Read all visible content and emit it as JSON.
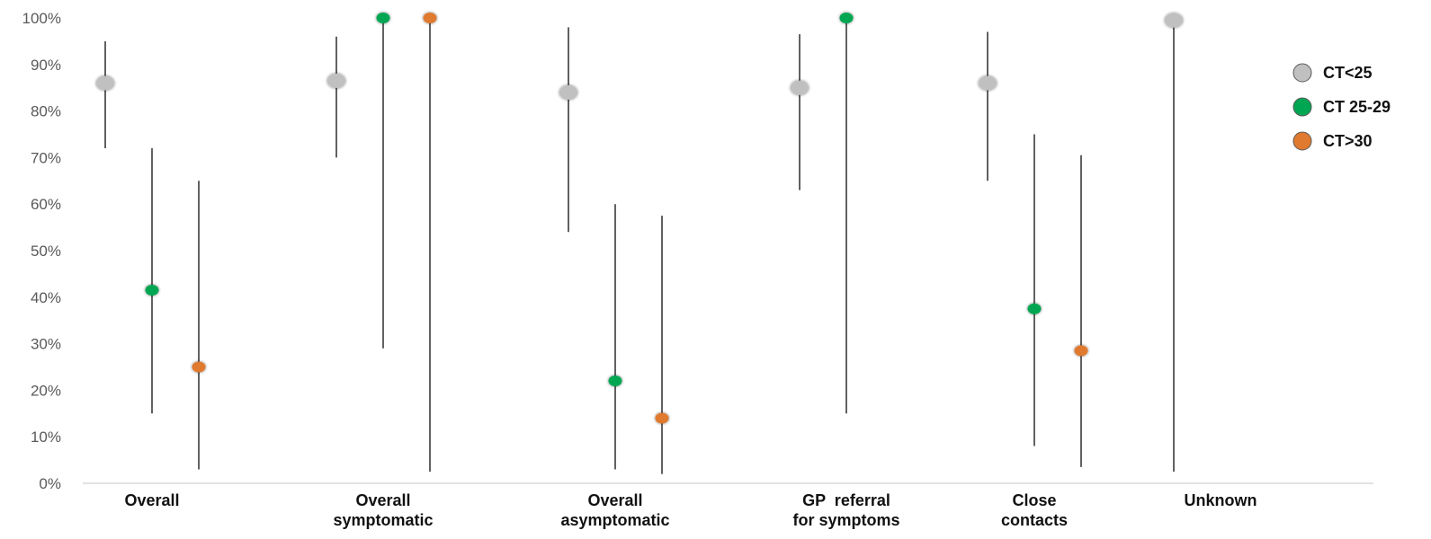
{
  "chart_data": {
    "type": "scatter",
    "y_tick_labels": [
      "0%",
      "10%",
      "20%",
      "30%",
      "40%",
      "50%",
      "60%",
      "70%",
      "80%",
      "90%",
      "100%"
    ],
    "ylim": [
      0,
      100
    ],
    "grid": false,
    "legend_position": "right",
    "categories": [
      {
        "lines": [
          "Overall"
        ]
      },
      {
        "lines": [
          "Overall",
          "symptomatic"
        ]
      },
      {
        "lines": [
          "Overall",
          "asymptomatic"
        ]
      },
      {
        "lines": [
          "GP  referral",
          "for symptoms"
        ]
      },
      {
        "lines": [
          "Close",
          "contacts"
        ]
      },
      {
        "lines": [
          "Unknown"
        ]
      }
    ],
    "series": [
      {
        "name": "CT<25",
        "color": "#c0c0c0",
        "points": [
          {
            "category": 0,
            "value": 86,
            "low": 72,
            "high": 95
          },
          {
            "category": 1,
            "value": 86.5,
            "low": 70,
            "high": 96
          },
          {
            "category": 2,
            "value": 84,
            "low": 54,
            "high": 98
          },
          {
            "category": 3,
            "value": 85,
            "low": 63,
            "high": 96.5
          },
          {
            "category": 4,
            "value": 86,
            "low": 65,
            "high": 97
          },
          {
            "category": 5,
            "value": 99.5,
            "low": 2.5,
            "high": 100
          }
        ]
      },
      {
        "name": "CT 25-29",
        "color": "#00a651",
        "points": [
          {
            "category": 0,
            "value": 41.5,
            "low": 15,
            "high": 72
          },
          {
            "category": 1,
            "value": 100,
            "low": 29,
            "high": 100
          },
          {
            "category": 2,
            "value": 22,
            "low": 3,
            "high": 60
          },
          {
            "category": 3,
            "value": 100,
            "low": 15,
            "high": 100
          },
          {
            "category": 4,
            "value": 37.5,
            "low": 8,
            "high": 75
          }
        ]
      },
      {
        "name": "CT>30",
        "color": "#e07a2e",
        "points": [
          {
            "category": 0,
            "value": 25,
            "low": 3,
            "high": 65
          },
          {
            "category": 1,
            "value": 100,
            "low": 2.5,
            "high": 100
          },
          {
            "category": 2,
            "value": 14,
            "low": 2,
            "high": 57.5
          },
          {
            "category": 4,
            "value": 28.5,
            "low": 3.5,
            "high": 70.5
          }
        ]
      }
    ]
  }
}
